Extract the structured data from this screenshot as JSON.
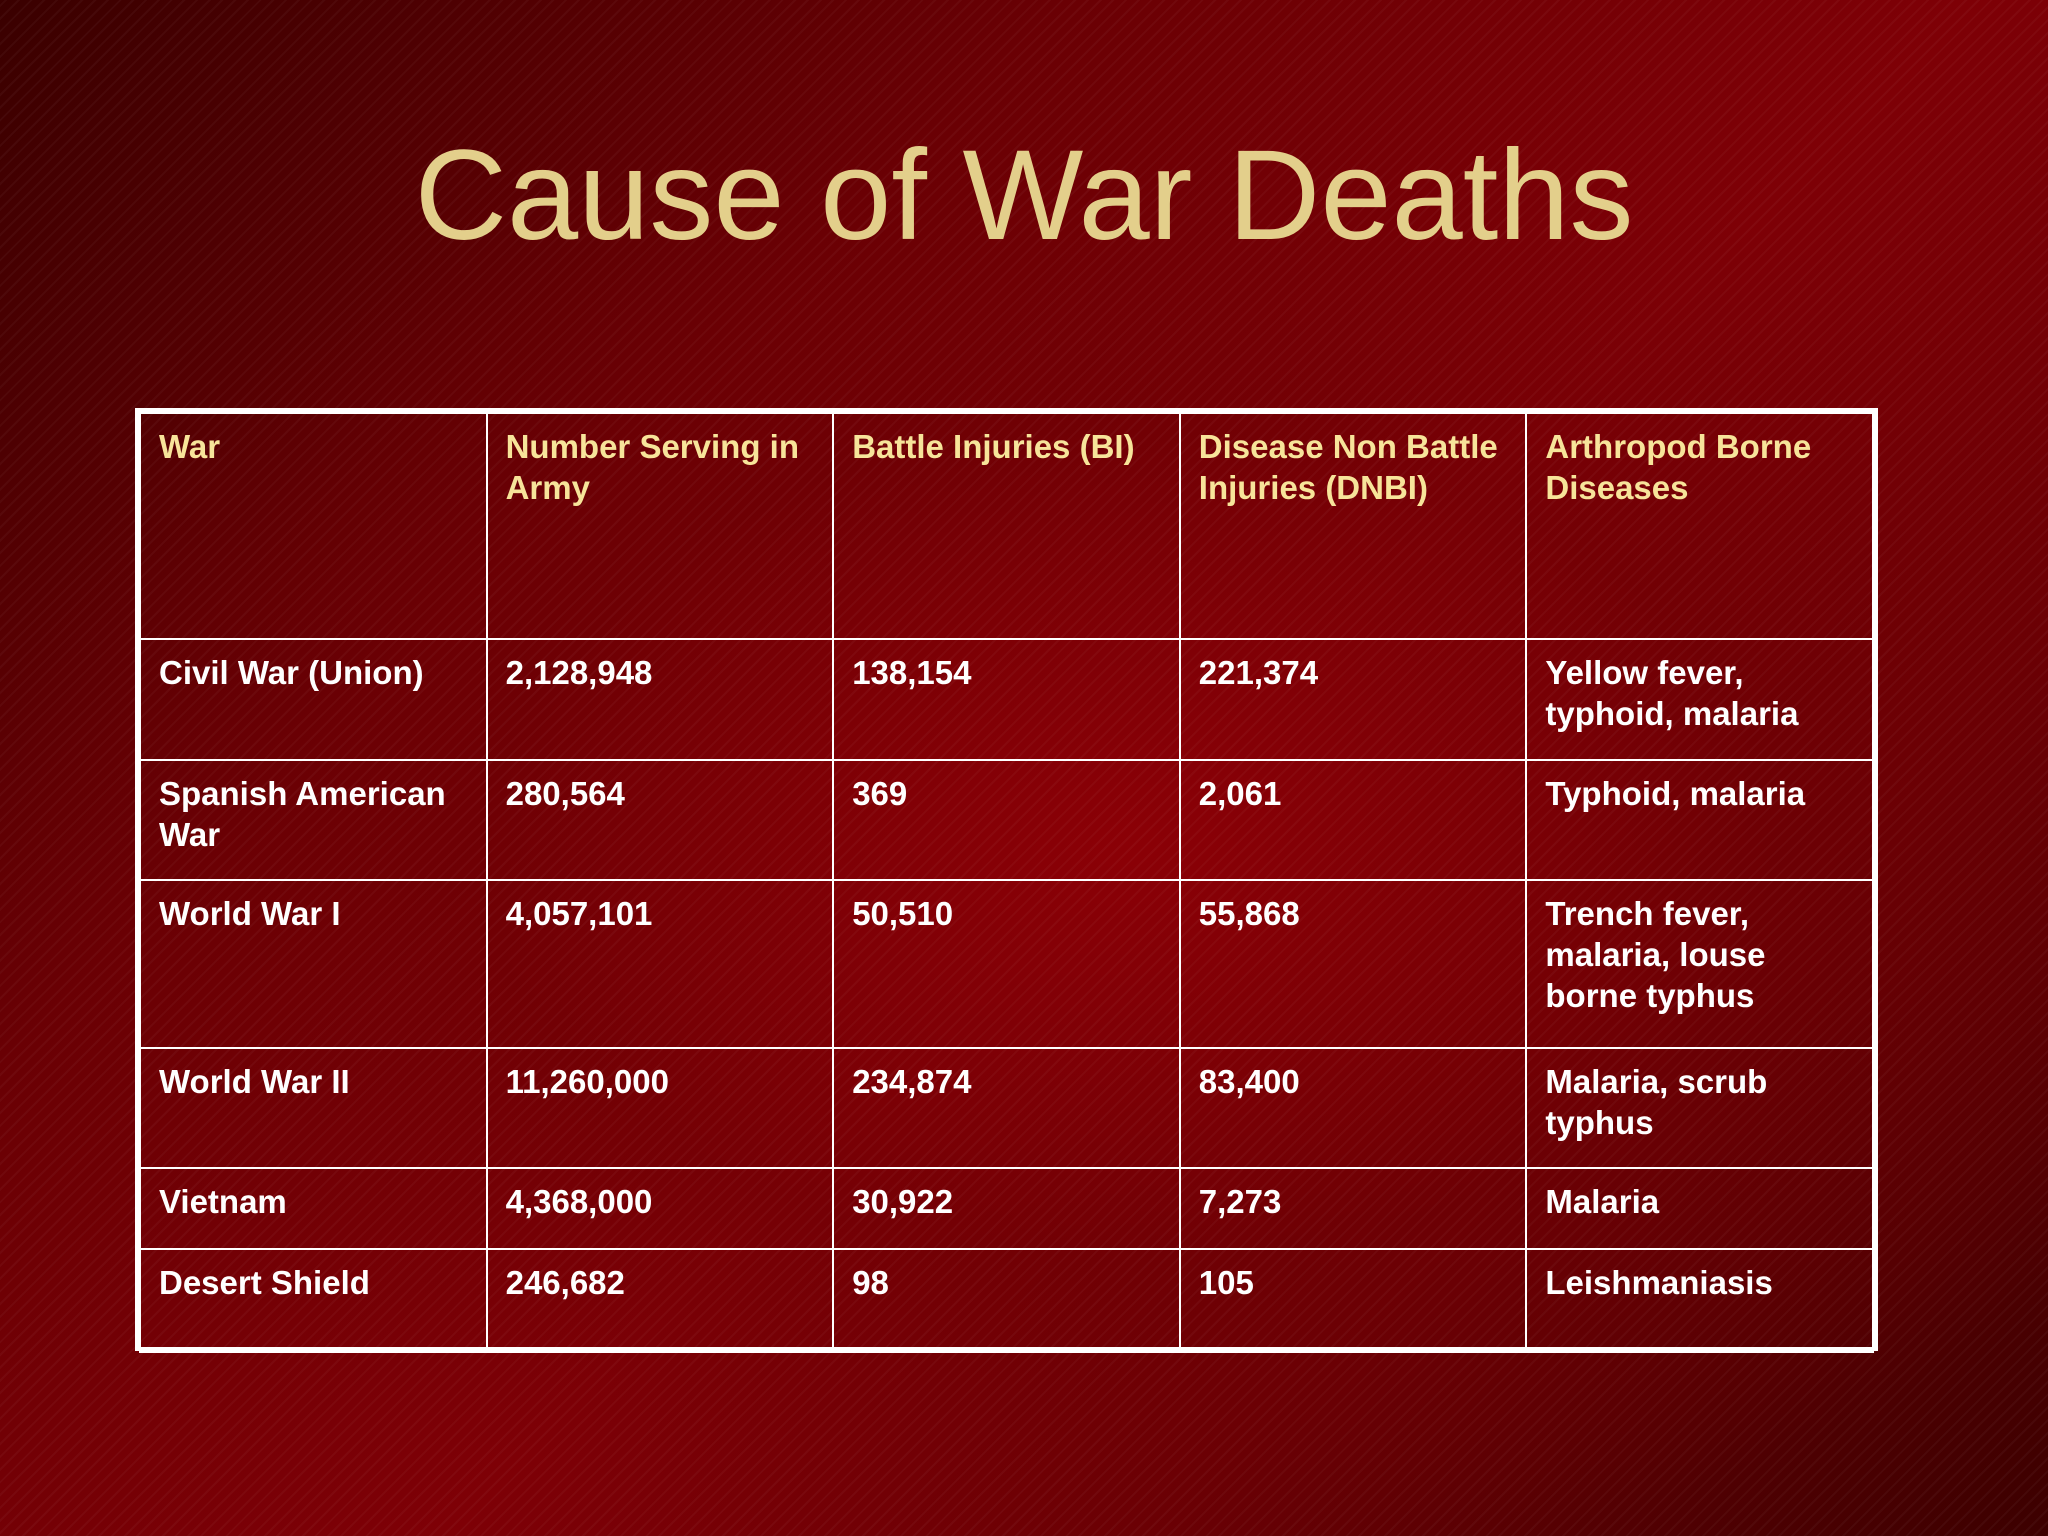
{
  "slide": {
    "title": "Cause of War Deaths"
  },
  "table": {
    "headers": [
      "War",
      "Number Serving in Army",
      "Battle Injuries (BI)",
      "Disease Non Battle Injuries (DNBI)",
      "Arthropod Borne Diseases"
    ],
    "rows": [
      [
        "Civil War (Union)",
        "2,128,948",
        "138,154",
        "221,374",
        "Yellow fever, typhoid, malaria"
      ],
      [
        "Spanish American War",
        "280,564",
        "369",
        "2,061",
        "Typhoid, malaria"
      ],
      [
        "World War I",
        "4,057,101",
        "50,510",
        "55,868",
        "Trench fever, malaria, louse borne typhus"
      ],
      [
        "World War II",
        "11,260,000",
        "234,874",
        "83,400",
        "Malaria, scrub typhus"
      ],
      [
        "Vietnam",
        "4,368,000",
        "30,922",
        "7,273",
        "Malaria"
      ],
      [
        "Desert Shield",
        "246,682",
        "98",
        "105",
        "Leishmaniasis"
      ]
    ]
  },
  "colors": {
    "background": "#6e0004",
    "title": "#e3cf8b",
    "header_text": "#f7e49a",
    "cell_text": "#ffffff",
    "grid": "#ffffff"
  }
}
